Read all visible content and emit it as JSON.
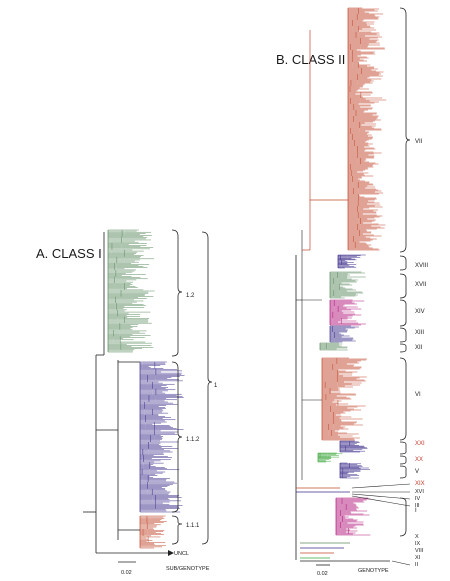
{
  "panel_a": {
    "title": "A. CLASS I",
    "labels": {
      "sub12": "1.2",
      "sub112": "1.1.2",
      "sub111": "1.1.1",
      "genotype1": "1",
      "uncl": "UNCL"
    },
    "scale_label": "0.02",
    "axis_caption": "SUB/GENOTYPE",
    "colors": {
      "sub12": "#5b8a5e",
      "sub112": "#3b2d8a",
      "sub111": "#c0462b",
      "backbone": "#222222"
    }
  },
  "panel_b": {
    "title": "B. CLASS II",
    "labels": {
      "vii": "VII",
      "xviii": "XVIII",
      "xvii": "XVII",
      "xiv": "XIV",
      "xiii": "XIII",
      "xii": "XII",
      "vi": "VI",
      "xxi": "XXI",
      "xx": "XX",
      "v": "V",
      "xix": "XIX",
      "xvi": "XVI",
      "iv": "IV",
      "iii": "III",
      "i": "I",
      "x": "X",
      "ix": "IX",
      "viii": "VIII",
      "xi": "XI",
      "ii": "II"
    },
    "scale_label": "0.02",
    "axis_caption": "GENOTYPE",
    "colors": {
      "orange": "#c0462b",
      "green": "#5b8a5e",
      "purple": "#3b2d8a",
      "magenta": "#b0147a",
      "bright_green": "#3aa63a",
      "backbone": "#222222"
    }
  }
}
